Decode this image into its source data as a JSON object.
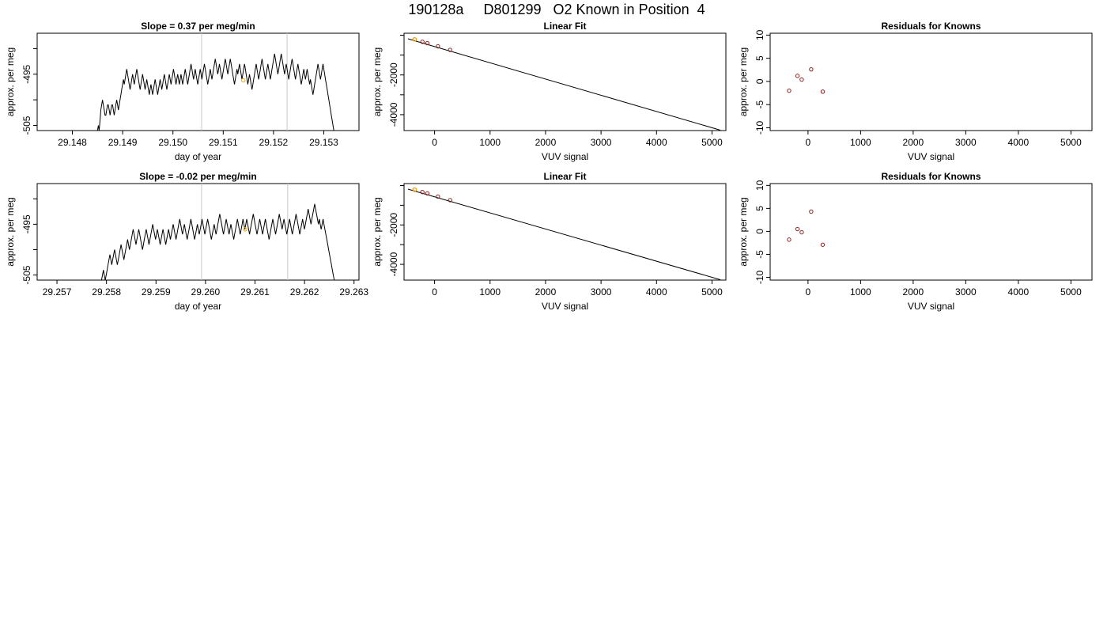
{
  "figure": {
    "title": "190128a     D801299   O2 Known in Position  4"
  },
  "chart_data": [
    {
      "type": "line",
      "title": "Slope =  0.37  per meg/min",
      "xlabel": "day of year",
      "ylabel": "approx. per meg",
      "xlim": [
        29.1473,
        29.1537
      ],
      "ylim": [
        -506,
        -487
      ],
      "xticks": [
        "29.148",
        "29.149",
        "29.150",
        "29.151",
        "29.152",
        "29.153"
      ],
      "yticks": [
        "-505",
        "-495"
      ],
      "ytick_values": [
        -505,
        -500,
        -495,
        -490
      ],
      "vlines": [
        29.15057,
        29.15227
      ],
      "highlight_point": {
        "x": 29.1514,
        "y": -496.2,
        "color": "#ffa500"
      },
      "series": [
        {
          "color": "#000000",
          "x_start": 29.1485,
          "x_end": 29.1532,
          "values": [
            -506,
            -505,
            -506,
            -504,
            -502,
            -501,
            -500,
            -501,
            -502,
            -503,
            -503,
            -502,
            -501,
            -501,
            -502,
            -503,
            -502,
            -501,
            -501,
            -502,
            -503,
            -502,
            -501,
            -500,
            -501,
            -502,
            -501,
            -500,
            -499,
            -498,
            -497,
            -496,
            -497,
            -496,
            -495,
            -494,
            -495,
            -496,
            -497,
            -498,
            -497,
            -496,
            -495,
            -496,
            -497,
            -496,
            -495,
            -494,
            -495,
            -496,
            -497,
            -498,
            -497,
            -496,
            -495,
            -496,
            -497,
            -498,
            -497,
            -496,
            -497,
            -498,
            -499,
            -498,
            -497,
            -498,
            -499,
            -498,
            -497,
            -496,
            -497,
            -498,
            -499,
            -498,
            -497,
            -496,
            -497,
            -498,
            -497,
            -496,
            -495,
            -496,
            -497,
            -498,
            -497,
            -496,
            -495,
            -496,
            -497,
            -496,
            -495,
            -494,
            -495,
            -496,
            -497,
            -496,
            -495,
            -496,
            -497,
            -496,
            -495,
            -496,
            -497,
            -496,
            -495,
            -494,
            -495,
            -496,
            -497,
            -496,
            -495,
            -494,
            -493,
            -494,
            -495,
            -496,
            -495,
            -494,
            -495,
            -496,
            -497,
            -496,
            -495,
            -494,
            -495,
            -496,
            -495,
            -494,
            -493,
            -494,
            -495,
            -496,
            -497,
            -496,
            -495,
            -494,
            -495,
            -496,
            -495,
            -494,
            -493,
            -492,
            -493,
            -494,
            -495,
            -494,
            -493,
            -494,
            -495,
            -496,
            -495,
            -494,
            -493,
            -492,
            -493,
            -494,
            -495,
            -494,
            -493,
            -492,
            -493,
            -494,
            -495,
            -496,
            -497,
            -496,
            -495,
            -494,
            -495,
            -494,
            -493,
            -494,
            -495,
            -496,
            -495,
            -494,
            -493,
            -494,
            -495,
            -496,
            -497,
            -496,
            -495,
            -496,
            -497,
            -498,
            -497,
            -496,
            -495,
            -494,
            -493,
            -494,
            -495,
            -496,
            -495,
            -494,
            -493,
            -492,
            -493,
            -494,
            -495,
            -496,
            -495,
            -494,
            -493,
            -494,
            -495,
            -496,
            -495,
            -494,
            -493,
            -492,
            -491,
            -492,
            -493,
            -494,
            -495,
            -494,
            -493,
            -492,
            -491,
            -492,
            -493,
            -494,
            -495,
            -494,
            -493,
            -494,
            -495,
            -496,
            -495,
            -494,
            -493,
            -492,
            -493,
            -494,
            -495,
            -496,
            -495,
            -494,
            -493,
            -494,
            -495,
            -496,
            -497,
            -496,
            -495,
            -494,
            -495,
            -496,
            -495,
            -494,
            -495,
            -496,
            -497,
            -496,
            -497,
            -498,
            -499,
            -498,
            -497,
            -496,
            -495,
            -494,
            -493,
            -494,
            -495,
            -496,
            -495,
            -494,
            -493,
            -494,
            -495,
            -496,
            -497,
            -498,
            -499,
            -500,
            -501,
            -502,
            -503,
            -504,
            -505,
            -506
          ]
        }
      ]
    },
    {
      "type": "line",
      "title": "Linear Fit",
      "xlabel": "VUV signal",
      "ylabel": "approx. per meg",
      "xlim": [
        -550,
        5250
      ],
      "ylim": [
        -4800,
        100
      ],
      "xticks": [
        0,
        1000,
        2000,
        3000,
        4000,
        5000
      ],
      "yticks": [
        -2000,
        -4000
      ],
      "ytick_values": [
        -4000,
        -3000,
        -2000,
        -1000,
        0
      ],
      "fit_line": {
        "x": [
          -480,
          5150
        ],
        "y": [
          -180,
          -4780
        ]
      },
      "points": {
        "color": "#8b2323",
        "x": [
          -360,
          -220,
          -130,
          60,
          280
        ],
        "y": [
          -210,
          -330,
          -400,
          -560,
          -740
        ]
      },
      "highlight_point": {
        "x": -360,
        "y": -210,
        "color": "#ffa500"
      }
    },
    {
      "type": "scatter",
      "title": "Residuals for Knowns",
      "xlabel": "VUV signal",
      "ylabel": "approx. per meg",
      "xlim": [
        -720,
        5400
      ],
      "ylim": [
        -10.6,
        10.4
      ],
      "xticks": [
        0,
        1000,
        2000,
        3000,
        4000,
        5000
      ],
      "yticks": [
        10,
        5,
        0,
        -5,
        -10
      ],
      "points": {
        "color": "#8b2323",
        "x": [
          -360,
          -200,
          -120,
          60,
          280
        ],
        "y": [
          -2.0,
          1.2,
          0.4,
          2.6,
          -2.2
        ]
      }
    },
    {
      "type": "line",
      "title": "Slope =  -0.02  per meg/min",
      "xlabel": "day of year",
      "ylabel": "approx. per meg",
      "xlim": [
        29.2566,
        29.2631
      ],
      "ylim": [
        -506,
        -487
      ],
      "xticks": [
        "29.257",
        "29.258",
        "29.259",
        "29.260",
        "29.261",
        "29.262",
        "29.263"
      ],
      "yticks": [
        "-505",
        "-495"
      ],
      "ytick_values": [
        -505,
        -500,
        -495,
        -490
      ],
      "vlines": [
        29.25992,
        29.26166
      ],
      "highlight_point": {
        "x": 29.2608,
        "y": -496.0,
        "color": "#ffa500"
      },
      "series": [
        {
          "color": "#000000",
          "x_start": 29.2579,
          "x_end": 29.2626,
          "values": [
            -506,
            -505,
            -504,
            -505,
            -506,
            -505,
            -504,
            -503,
            -502,
            -501,
            -502,
            -503,
            -502,
            -501,
            -500,
            -501,
            -502,
            -503,
            -502,
            -501,
            -500,
            -499,
            -500,
            -501,
            -502,
            -501,
            -500,
            -499,
            -498,
            -499,
            -500,
            -499,
            -498,
            -497,
            -496,
            -497,
            -498,
            -499,
            -498,
            -497,
            -496,
            -497,
            -498,
            -499,
            -500,
            -499,
            -498,
            -497,
            -496,
            -497,
            -498,
            -499,
            -498,
            -497,
            -496,
            -495,
            -496,
            -497,
            -498,
            -497,
            -496,
            -497,
            -498,
            -499,
            -498,
            -497,
            -496,
            -497,
            -498,
            -499,
            -498,
            -497,
            -496,
            -497,
            -498,
            -497,
            -496,
            -495,
            -496,
            -497,
            -498,
            -497,
            -496,
            -495,
            -494,
            -495,
            -496,
            -497,
            -496,
            -495,
            -496,
            -497,
            -498,
            -497,
            -496,
            -495,
            -494,
            -495,
            -496,
            -497,
            -498,
            -497,
            -496,
            -495,
            -496,
            -497,
            -496,
            -495,
            -494,
            -495,
            -496,
            -497,
            -496,
            -495,
            -494,
            -495,
            -496,
            -497,
            -498,
            -497,
            -496,
            -495,
            -496,
            -497,
            -496,
            -495,
            -494,
            -493,
            -494,
            -495,
            -496,
            -497,
            -496,
            -495,
            -494,
            -495,
            -496,
            -497,
            -496,
            -495,
            -496,
            -497,
            -498,
            -497,
            -496,
            -495,
            -494,
            -495,
            -496,
            -497,
            -496,
            -495,
            -494,
            -495,
            -496,
            -495,
            -494,
            -495,
            -496,
            -497,
            -496,
            -495,
            -494,
            -493,
            -494,
            -495,
            -496,
            -497,
            -496,
            -495,
            -494,
            -495,
            -496,
            -497,
            -496,
            -495,
            -494,
            -495,
            -496,
            -497,
            -498,
            -497,
            -496,
            -495,
            -494,
            -495,
            -496,
            -497,
            -496,
            -495,
            -494,
            -493,
            -494,
            -495,
            -496,
            -495,
            -494,
            -495,
            -496,
            -497,
            -496,
            -495,
            -494,
            -495,
            -496,
            -497,
            -496,
            -495,
            -494,
            -493,
            -494,
            -495,
            -496,
            -497,
            -496,
            -495,
            -494,
            -495,
            -496,
            -495,
            -494,
            -493,
            -492,
            -493,
            -494,
            -495,
            -494,
            -493,
            -492,
            -491,
            -492,
            -493,
            -494,
            -495,
            -494,
            -495,
            -496,
            -495,
            -494,
            -495,
            -496,
            -497,
            -498,
            -499,
            -500,
            -501,
            -502,
            -503,
            -504,
            -505,
            -506
          ]
        }
      ]
    },
    {
      "type": "line",
      "title": "Linear Fit",
      "xlabel": "VUV signal",
      "ylabel": "approx. per meg",
      "xlim": [
        -550,
        5250
      ],
      "ylim": [
        -4800,
        100
      ],
      "xticks": [
        0,
        1000,
        2000,
        3000,
        4000,
        5000
      ],
      "yticks": [
        -2000,
        -4000
      ],
      "ytick_values": [
        -4000,
        -3000,
        -2000,
        -1000,
        0
      ],
      "fit_line": {
        "x": [
          -480,
          5150
        ],
        "y": [
          -180,
          -4780
        ]
      },
      "points": {
        "color": "#8b2323",
        "x": [
          -360,
          -220,
          -130,
          60,
          280
        ],
        "y": [
          -210,
          -330,
          -400,
          -560,
          -740
        ]
      },
      "highlight_point": {
        "x": -360,
        "y": -210,
        "color": "#ffa500"
      }
    },
    {
      "type": "scatter",
      "title": "Residuals for Knowns",
      "xlabel": "VUV signal",
      "ylabel": "approx. per meg",
      "xlim": [
        -720,
        5400
      ],
      "ylim": [
        -10.6,
        10.4
      ],
      "xticks": [
        0,
        1000,
        2000,
        3000,
        4000,
        5000
      ],
      "yticks": [
        10,
        5,
        0,
        -5,
        -10
      ],
      "points": {
        "color": "#8b2323",
        "x": [
          -360,
          -200,
          -120,
          60,
          280
        ],
        "y": [
          -1.8,
          0.5,
          -0.2,
          4.3,
          -2.9
        ]
      }
    }
  ]
}
